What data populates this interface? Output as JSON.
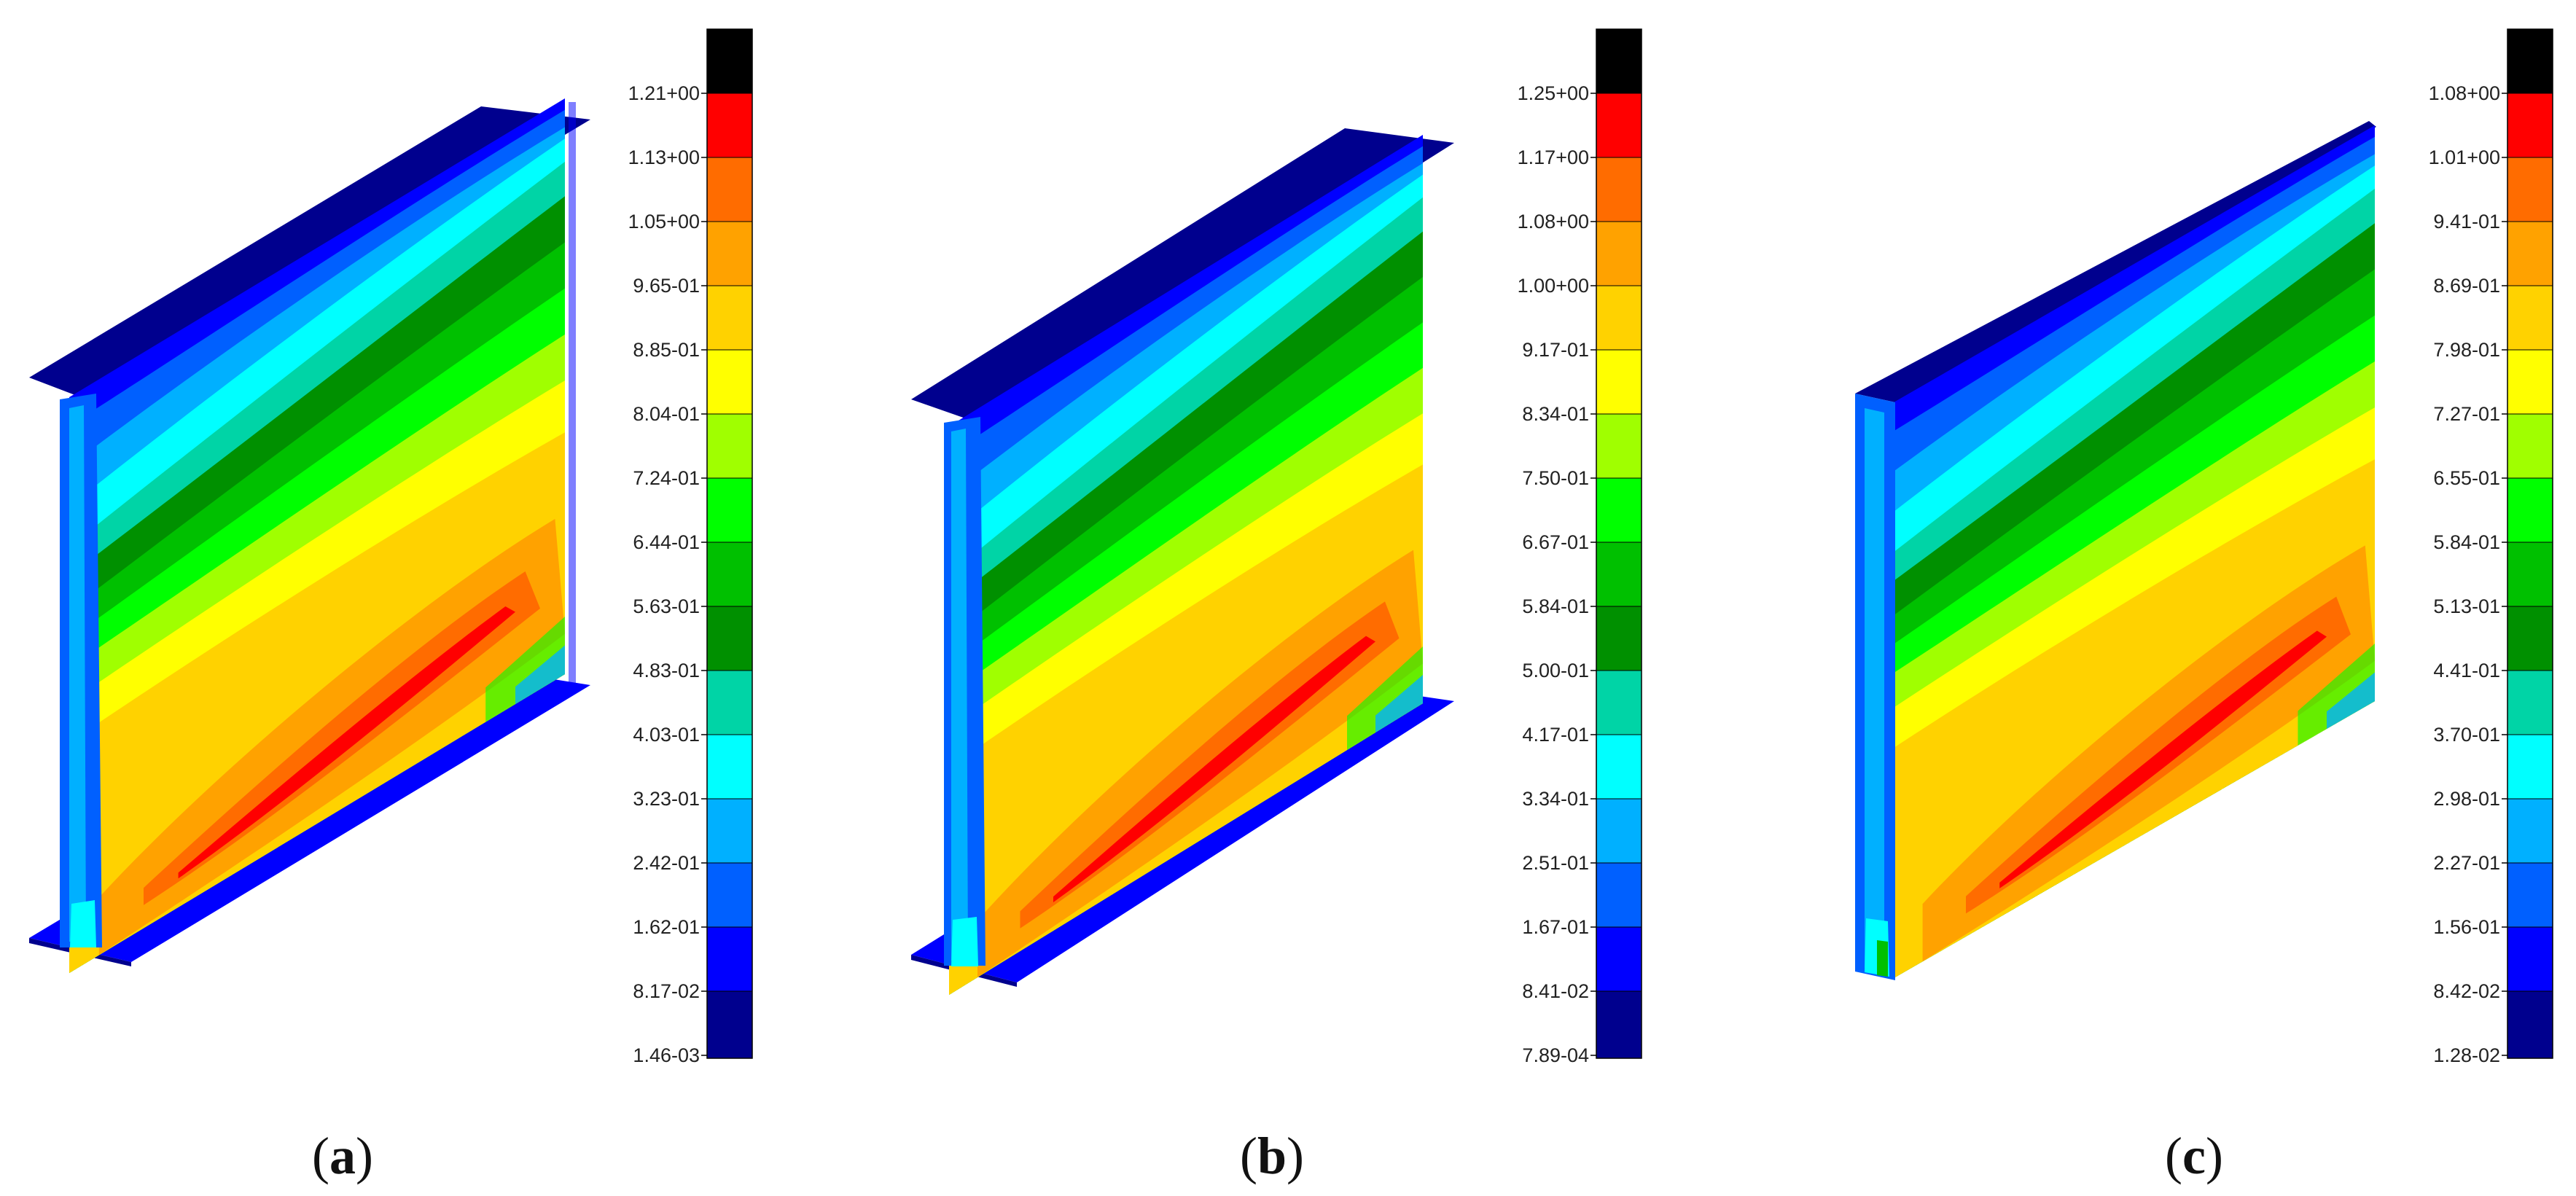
{
  "palette": [
    "#00008e",
    "#0000ff",
    "#0060ff",
    "#00b0ff",
    "#00ffff",
    "#00d4a6",
    "#009000",
    "#00c000",
    "#00ff00",
    "#a0ff00",
    "#ffff00",
    "#ffd200",
    "#ffa200",
    "#ff6c00",
    "#ff0000",
    "#000000"
  ],
  "panels": [
    {
      "id": "a",
      "label": "a",
      "geometry": "i-beam",
      "ticks": [
        "1.21+00",
        "1.13+00",
        "1.05+00",
        "9.65-01",
        "8.85-01",
        "8.04-01",
        "7.24-01",
        "6.44-01",
        "5.63-01",
        "4.83-01",
        "4.03-01",
        "3.23-01",
        "2.42-01",
        "1.62-01",
        "8.17-02",
        "1.46-03"
      ]
    },
    {
      "id": "b",
      "label": "b",
      "geometry": "i-beam",
      "ticks": [
        "1.25+00",
        "1.17+00",
        "1.08+00",
        "1.00+00",
        "9.17-01",
        "8.34-01",
        "7.50-01",
        "6.67-01",
        "5.84-01",
        "5.00-01",
        "4.17-01",
        "3.34-01",
        "2.51-01",
        "1.67-01",
        "8.41-02",
        "7.89-04"
      ]
    },
    {
      "id": "c",
      "label": "c",
      "geometry": "plate",
      "ticks": [
        "1.08+00",
        "1.01+00",
        "9.41-01",
        "8.69-01",
        "7.98-01",
        "7.27-01",
        "6.55-01",
        "5.84-01",
        "5.13-01",
        "4.41-01",
        "3.70-01",
        "2.98-01",
        "2.27-01",
        "1.56-01",
        "8.42-02",
        "1.28-02"
      ]
    }
  ]
}
